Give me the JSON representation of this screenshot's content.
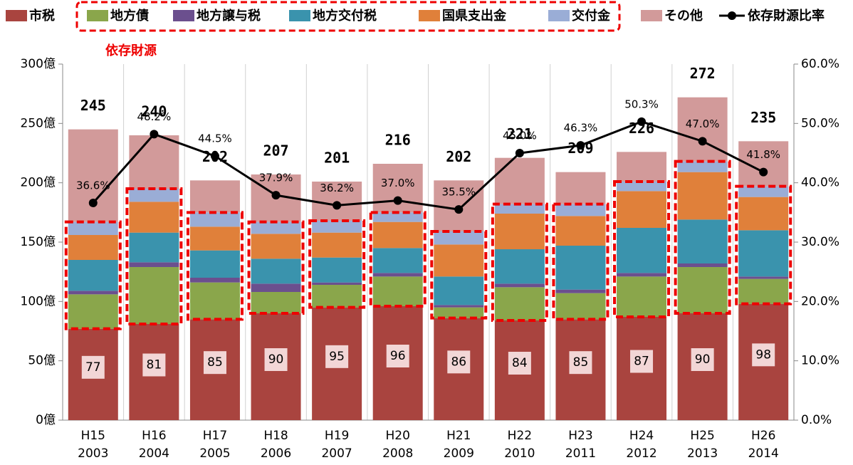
{
  "chart_data": {
    "type": "bar",
    "annotation": "依存財源",
    "categories": [
      [
        "H15",
        "2003"
      ],
      [
        "H16",
        "2004"
      ],
      [
        "H17",
        "2005"
      ],
      [
        "H18",
        "2006"
      ],
      [
        "H19",
        "2007"
      ],
      [
        "H20",
        "2008"
      ],
      [
        "H21",
        "2009"
      ],
      [
        "H22",
        "2010"
      ],
      [
        "H23",
        "2011"
      ],
      [
        "H24",
        "2012"
      ],
      [
        "H25",
        "2013"
      ],
      [
        "H26",
        "2014"
      ]
    ],
    "series": [
      {
        "name": "市税",
        "color": "#a9443f",
        "values": [
          77,
          81,
          85,
          90,
          95,
          96,
          86,
          84,
          85,
          87,
          90,
          98
        ]
      },
      {
        "name": "地方債",
        "color": "#8aa64b",
        "values": [
          29,
          48,
          31,
          18,
          19,
          25,
          9,
          28,
          22,
          34,
          39,
          21
        ]
      },
      {
        "name": "地方譲与税",
        "color": "#6b4f8e",
        "values": [
          3,
          4,
          4,
          7,
          2,
          3,
          2,
          3,
          3,
          3,
          3,
          2
        ]
      },
      {
        "name": "地方交付税",
        "color": "#3a93ad",
        "values": [
          26,
          25,
          23,
          21,
          21,
          21,
          24,
          29,
          37,
          38,
          37,
          39
        ]
      },
      {
        "name": "国県支出金",
        "color": "#e0803a",
        "values": [
          21,
          26,
          20,
          21,
          21,
          22,
          27,
          30,
          25,
          31,
          40,
          28
        ]
      },
      {
        "name": "交付金",
        "color": "#9aadd6",
        "values": [
          11,
          11,
          12,
          10,
          10,
          8,
          11,
          8,
          10,
          8,
          9,
          9
        ]
      },
      {
        "name": "その他",
        "color": "#d29a9a",
        "values": [
          78,
          45,
          27,
          40,
          33,
          41,
          43,
          39,
          27,
          25,
          54,
          38
        ]
      },
      {
        "name": "依存財源比率",
        "color": "#000000",
        "type": "line",
        "axis": "y2",
        "values": [
          36.6,
          48.2,
          44.5,
          37.9,
          36.2,
          37.0,
          35.5,
          45.0,
          46.3,
          50.3,
          47.0,
          41.8
        ],
        "value_labels": [
          "36.6%",
          "48.2%",
          "44.5%",
          "37.9%",
          "36.2%",
          "37.0%",
          "35.5%",
          "45.0%",
          "46.3%",
          "50.3%",
          "47.0%",
          "41.8%"
        ]
      }
    ],
    "totals": [
      245,
      240,
      202,
      207,
      201,
      216,
      202,
      221,
      209,
      226,
      272,
      235
    ],
    "ylim": [
      0,
      300
    ],
    "yticks": [
      {
        "value": 0,
        "label": "0億"
      },
      {
        "value": 50,
        "label": "50億"
      },
      {
        "value": 100,
        "label": "100億"
      },
      {
        "value": 150,
        "label": "150億"
      },
      {
        "value": 200,
        "label": "200億"
      },
      {
        "value": 250,
        "label": "250億"
      },
      {
        "value": 300,
        "label": "300億"
      }
    ],
    "y2lim": [
      0,
      60
    ],
    "y2ticks": [
      {
        "value": 0,
        "label": "0.0%"
      },
      {
        "value": 10,
        "label": "10.0%"
      },
      {
        "value": 20,
        "label": "20.0%"
      },
      {
        "value": 30,
        "label": "30.0%"
      },
      {
        "value": 40,
        "label": "40.0%"
      },
      {
        "value": 50,
        "label": "50.0%"
      },
      {
        "value": 60,
        "label": "60.0%"
      }
    ]
  }
}
